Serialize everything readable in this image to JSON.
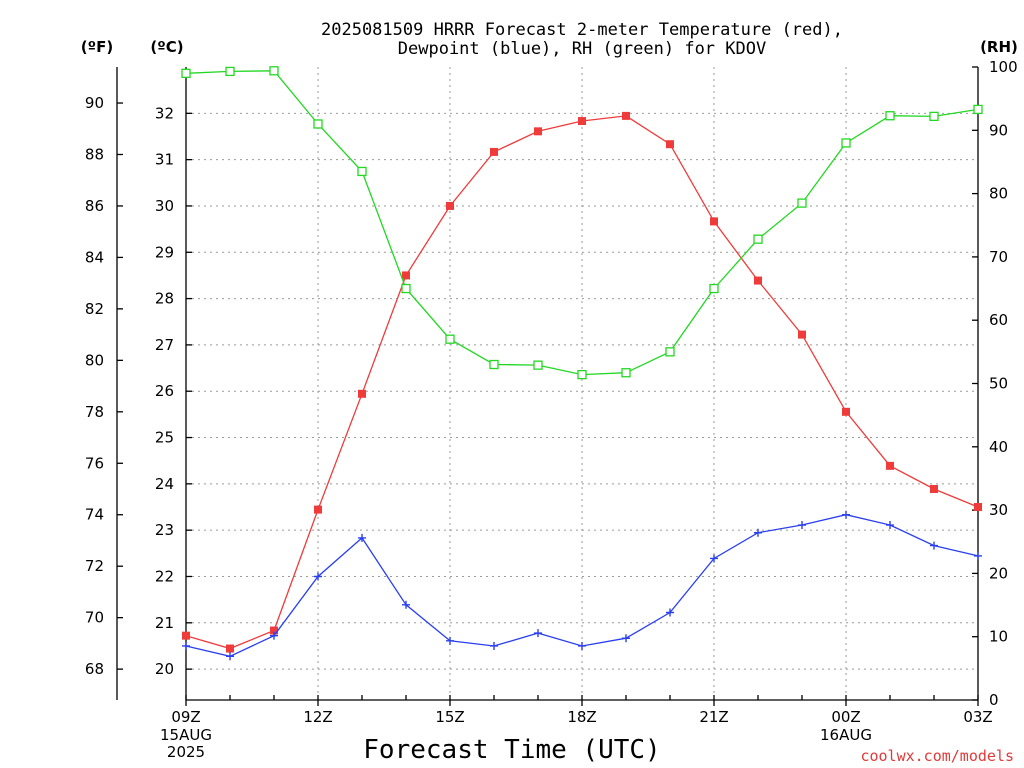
{
  "chart_data": {
    "type": "line",
    "title_line1": "2025081509 HRRR Forecast 2-meter Temperature (red),",
    "title_line2": "Dewpoint (blue), RH (green) for KDOV",
    "xlabel": "Forecast Time (UTC)",
    "credit": "coolwx.com/models",
    "unit_f": "(ºF)",
    "unit_c": "(ºC)",
    "unit_rh": "(RH)",
    "x_hours": [
      9,
      10,
      11,
      12,
      13,
      14,
      15,
      16,
      17,
      18,
      19,
      20,
      21,
      22,
      23,
      24,
      25,
      26,
      27
    ],
    "x_ticks": [
      {
        "h": 9,
        "label": "09Z",
        "sub1": "15AUG",
        "sub2": "2025"
      },
      {
        "h": 12,
        "label": "12Z",
        "sub1": "",
        "sub2": ""
      },
      {
        "h": 15,
        "label": "15Z",
        "sub1": "",
        "sub2": ""
      },
      {
        "h": 18,
        "label": "18Z",
        "sub1": "",
        "sub2": ""
      },
      {
        "h": 21,
        "label": "21Z",
        "sub1": "",
        "sub2": ""
      },
      {
        "h": 24,
        "label": "00Z",
        "sub1": "16AUG",
        "sub2": ""
      },
      {
        "h": 27,
        "label": "03Z",
        "sub1": "",
        "sub2": ""
      }
    ],
    "ylim_f": [
      66.8,
      91.4
    ],
    "ylim_rh": [
      0,
      100
    ],
    "yticks_f": [
      68,
      70,
      72,
      74,
      76,
      78,
      80,
      82,
      84,
      86,
      88,
      90
    ],
    "yticks_c": [
      20,
      21,
      22,
      23,
      24,
      25,
      26,
      27,
      28,
      29,
      30,
      31,
      32
    ],
    "yticks_rh": [
      0,
      10,
      20,
      30,
      40,
      50,
      60,
      70,
      80,
      90,
      100
    ],
    "series": [
      {
        "name": "Temperature (red)",
        "axis": "F",
        "color": "#f03b3b",
        "marker": "filled-square",
        "values": [
          69.3,
          68.8,
          69.5,
          74.2,
          78.7,
          83.3,
          86.0,
          88.1,
          88.9,
          89.3,
          89.5,
          88.4,
          85.4,
          83.1,
          81.0,
          78.0,
          75.9,
          75.0,
          74.3
        ]
      },
      {
        "name": "Dewpoint (blue)",
        "axis": "F",
        "color": "#2a3ff0",
        "marker": "plus",
        "values": [
          68.9,
          68.5,
          69.3,
          71.6,
          73.1,
          70.5,
          69.1,
          68.9,
          69.4,
          68.9,
          69.2,
          70.2,
          72.3,
          73.3,
          73.6,
          74.0,
          73.6,
          72.8,
          72.4
        ]
      },
      {
        "name": "RH (green)",
        "axis": "RH",
        "color": "#22d822",
        "marker": "open-square",
        "values": [
          99.0,
          99.3,
          99.4,
          91.0,
          83.5,
          65.0,
          57.0,
          53.0,
          52.9,
          51.4,
          51.7,
          55.0,
          65.0,
          72.8,
          78.5,
          88.0,
          92.3,
          92.2,
          93.3
        ]
      }
    ],
    "grid": true
  }
}
